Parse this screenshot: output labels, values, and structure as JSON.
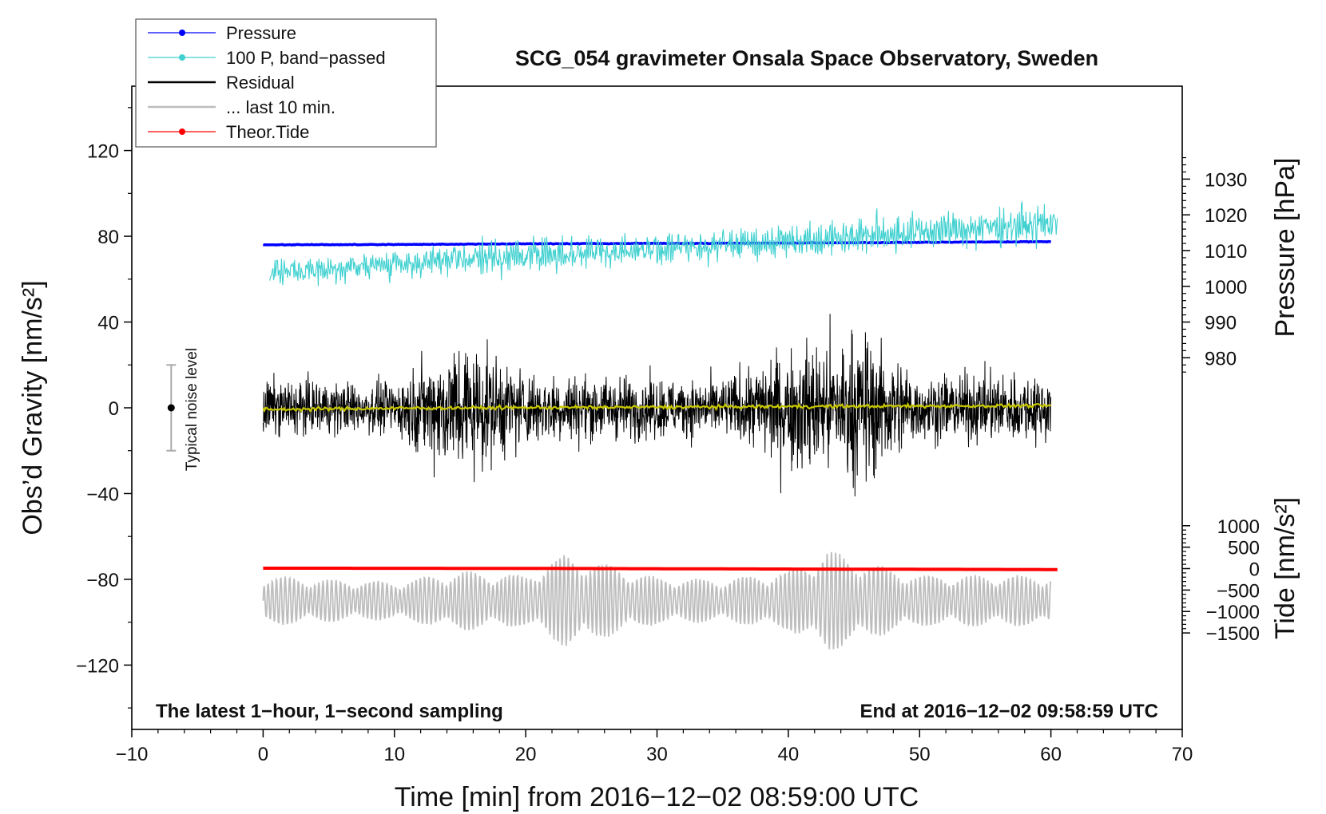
{
  "chart_data": {
    "type": "line",
    "title": "SCG_054 gravimeter Onsala Space Observatory, Sweden",
    "xlabel": "Time [min] from 2016−12−02 08:59:00 UTC",
    "ylabel_left": "Obs’d Gravity [nm/s²]",
    "ylabel_right_pressure": "Pressure [hPa]",
    "ylabel_right_tide": "Tide [nm/s²]",
    "xlim": [
      -10,
      70
    ],
    "ylim_left": [
      -150,
      150
    ],
    "x_ticks": [
      {
        "value": -10,
        "label": "−10"
      },
      {
        "value": 0,
        "label": "0"
      },
      {
        "value": 10,
        "label": "10"
      },
      {
        "value": 20,
        "label": "20"
      },
      {
        "value": 30,
        "label": "30"
      },
      {
        "value": 40,
        "label": "40"
      },
      {
        "value": 50,
        "label": "50"
      },
      {
        "value": 60,
        "label": "60"
      },
      {
        "value": 70,
        "label": "70"
      }
    ],
    "y_ticks_left": [
      {
        "value": 120,
        "label": "120"
      },
      {
        "value": 80,
        "label": "80"
      },
      {
        "value": 40,
        "label": "40"
      },
      {
        "value": 0,
        "label": "0"
      },
      {
        "value": -40,
        "label": "−40"
      },
      {
        "value": -80,
        "label": "−80"
      },
      {
        "value": -120,
        "label": "−120"
      }
    ],
    "pressure_axis": {
      "scale_left_per_hpa": 1.6667,
      "offset_hpa": 1038,
      "ticks": [
        {
          "value": 1030,
          "label": "1030"
        },
        {
          "value": 1020,
          "label": "1020"
        },
        {
          "value": 1010,
          "label": "1010"
        },
        {
          "value": 1000,
          "label": "1000"
        },
        {
          "value": 990,
          "label": "990"
        },
        {
          "value": 980,
          "label": "980"
        }
      ]
    },
    "tide_axis": {
      "scale_left_per_unit": 0.02,
      "offset_left": -75,
      "ticks": [
        {
          "value": 1000,
          "label": "1000"
        },
        {
          "value": 500,
          "label": "500"
        },
        {
          "value": 0,
          "label": "0"
        },
        {
          "value": -500,
          "label": "−500"
        },
        {
          "value": -1000,
          "label": "−1000"
        },
        {
          "value": -1500,
          "label": "−1500"
        }
      ]
    },
    "series": [
      {
        "name": "Pressure",
        "color": "#0000ff",
        "unit": "hPa",
        "x": [
          0,
          10,
          20,
          30,
          40,
          50,
          60
        ],
        "values": [
          1011.6,
          1011.7,
          1011.9,
          1012.0,
          1012.1,
          1012.3,
          1012.5
        ]
      },
      {
        "name": "100 P, band−passed",
        "color": "#40d0d0",
        "unit": "nm/s² (offset)",
        "x": [
          0,
          10,
          20,
          30,
          40,
          50,
          60
        ],
        "center": [
          63,
          67,
          71,
          74,
          78,
          82,
          86
        ],
        "amplitude": [
          4,
          5,
          6,
          5,
          6,
          6,
          7
        ]
      },
      {
        "name": "Residual",
        "color": "#000000",
        "unit": "nm/s²",
        "x": [
          0,
          5,
          10,
          15,
          20,
          25,
          30,
          35,
          40,
          43,
          46,
          50,
          55,
          60
        ],
        "envelope": [
          13,
          12,
          12,
          33,
          17,
          15,
          14,
          13,
          28,
          32,
          35,
          15,
          16,
          16
        ]
      },
      {
        "name": "Residual smoothed",
        "color": "#c8c800",
        "unit": "nm/s²",
        "x": [
          0,
          10,
          20,
          30,
          40,
          50,
          60
        ],
        "values": [
          -0.8,
          -0.2,
          0.1,
          0.3,
          0.6,
          0.8,
          1.0
        ]
      },
      {
        "name": "... last 10 min.",
        "color": "#bdbdbd",
        "unit": "nm/s² (offset)",
        "center": -90,
        "x": [
          0,
          5,
          10,
          15,
          20,
          23,
          30,
          35,
          40,
          43,
          46,
          50,
          55,
          60
        ],
        "amplitude": [
          12,
          10,
          9,
          14,
          12,
          22,
          11,
          10,
          14,
          24,
          18,
          12,
          12,
          12
        ]
      },
      {
        "name": "Theor.Tide",
        "color": "#ff0000",
        "unit": "nm/s²",
        "x": [
          0,
          20,
          40,
          60.5
        ],
        "values": [
          10,
          5,
          -10,
          -22
        ]
      }
    ],
    "legend": {
      "location": "top-left",
      "entries": [
        {
          "label": "Pressure",
          "color": "#0000ff",
          "marker": true
        },
        {
          "label": "100 P, band−passed",
          "color": "#40d0d0",
          "marker": true
        },
        {
          "label": "Residual",
          "color": "#000000",
          "marker": false
        },
        {
          "label": "... last 10 min.",
          "color": "#bdbdbd",
          "marker": false
        },
        {
          "label": "Theor.Tide",
          "color": "#ff0000",
          "marker": true
        }
      ]
    },
    "noise_indicator": {
      "label": "Typical noise level",
      "x": -7,
      "center": 0,
      "low": -20,
      "high": 20
    },
    "annotations": {
      "bottom_left": "The latest 1−hour, 1−second sampling",
      "bottom_right": "End at 2016−12−02 09:58:59 UTC"
    }
  }
}
